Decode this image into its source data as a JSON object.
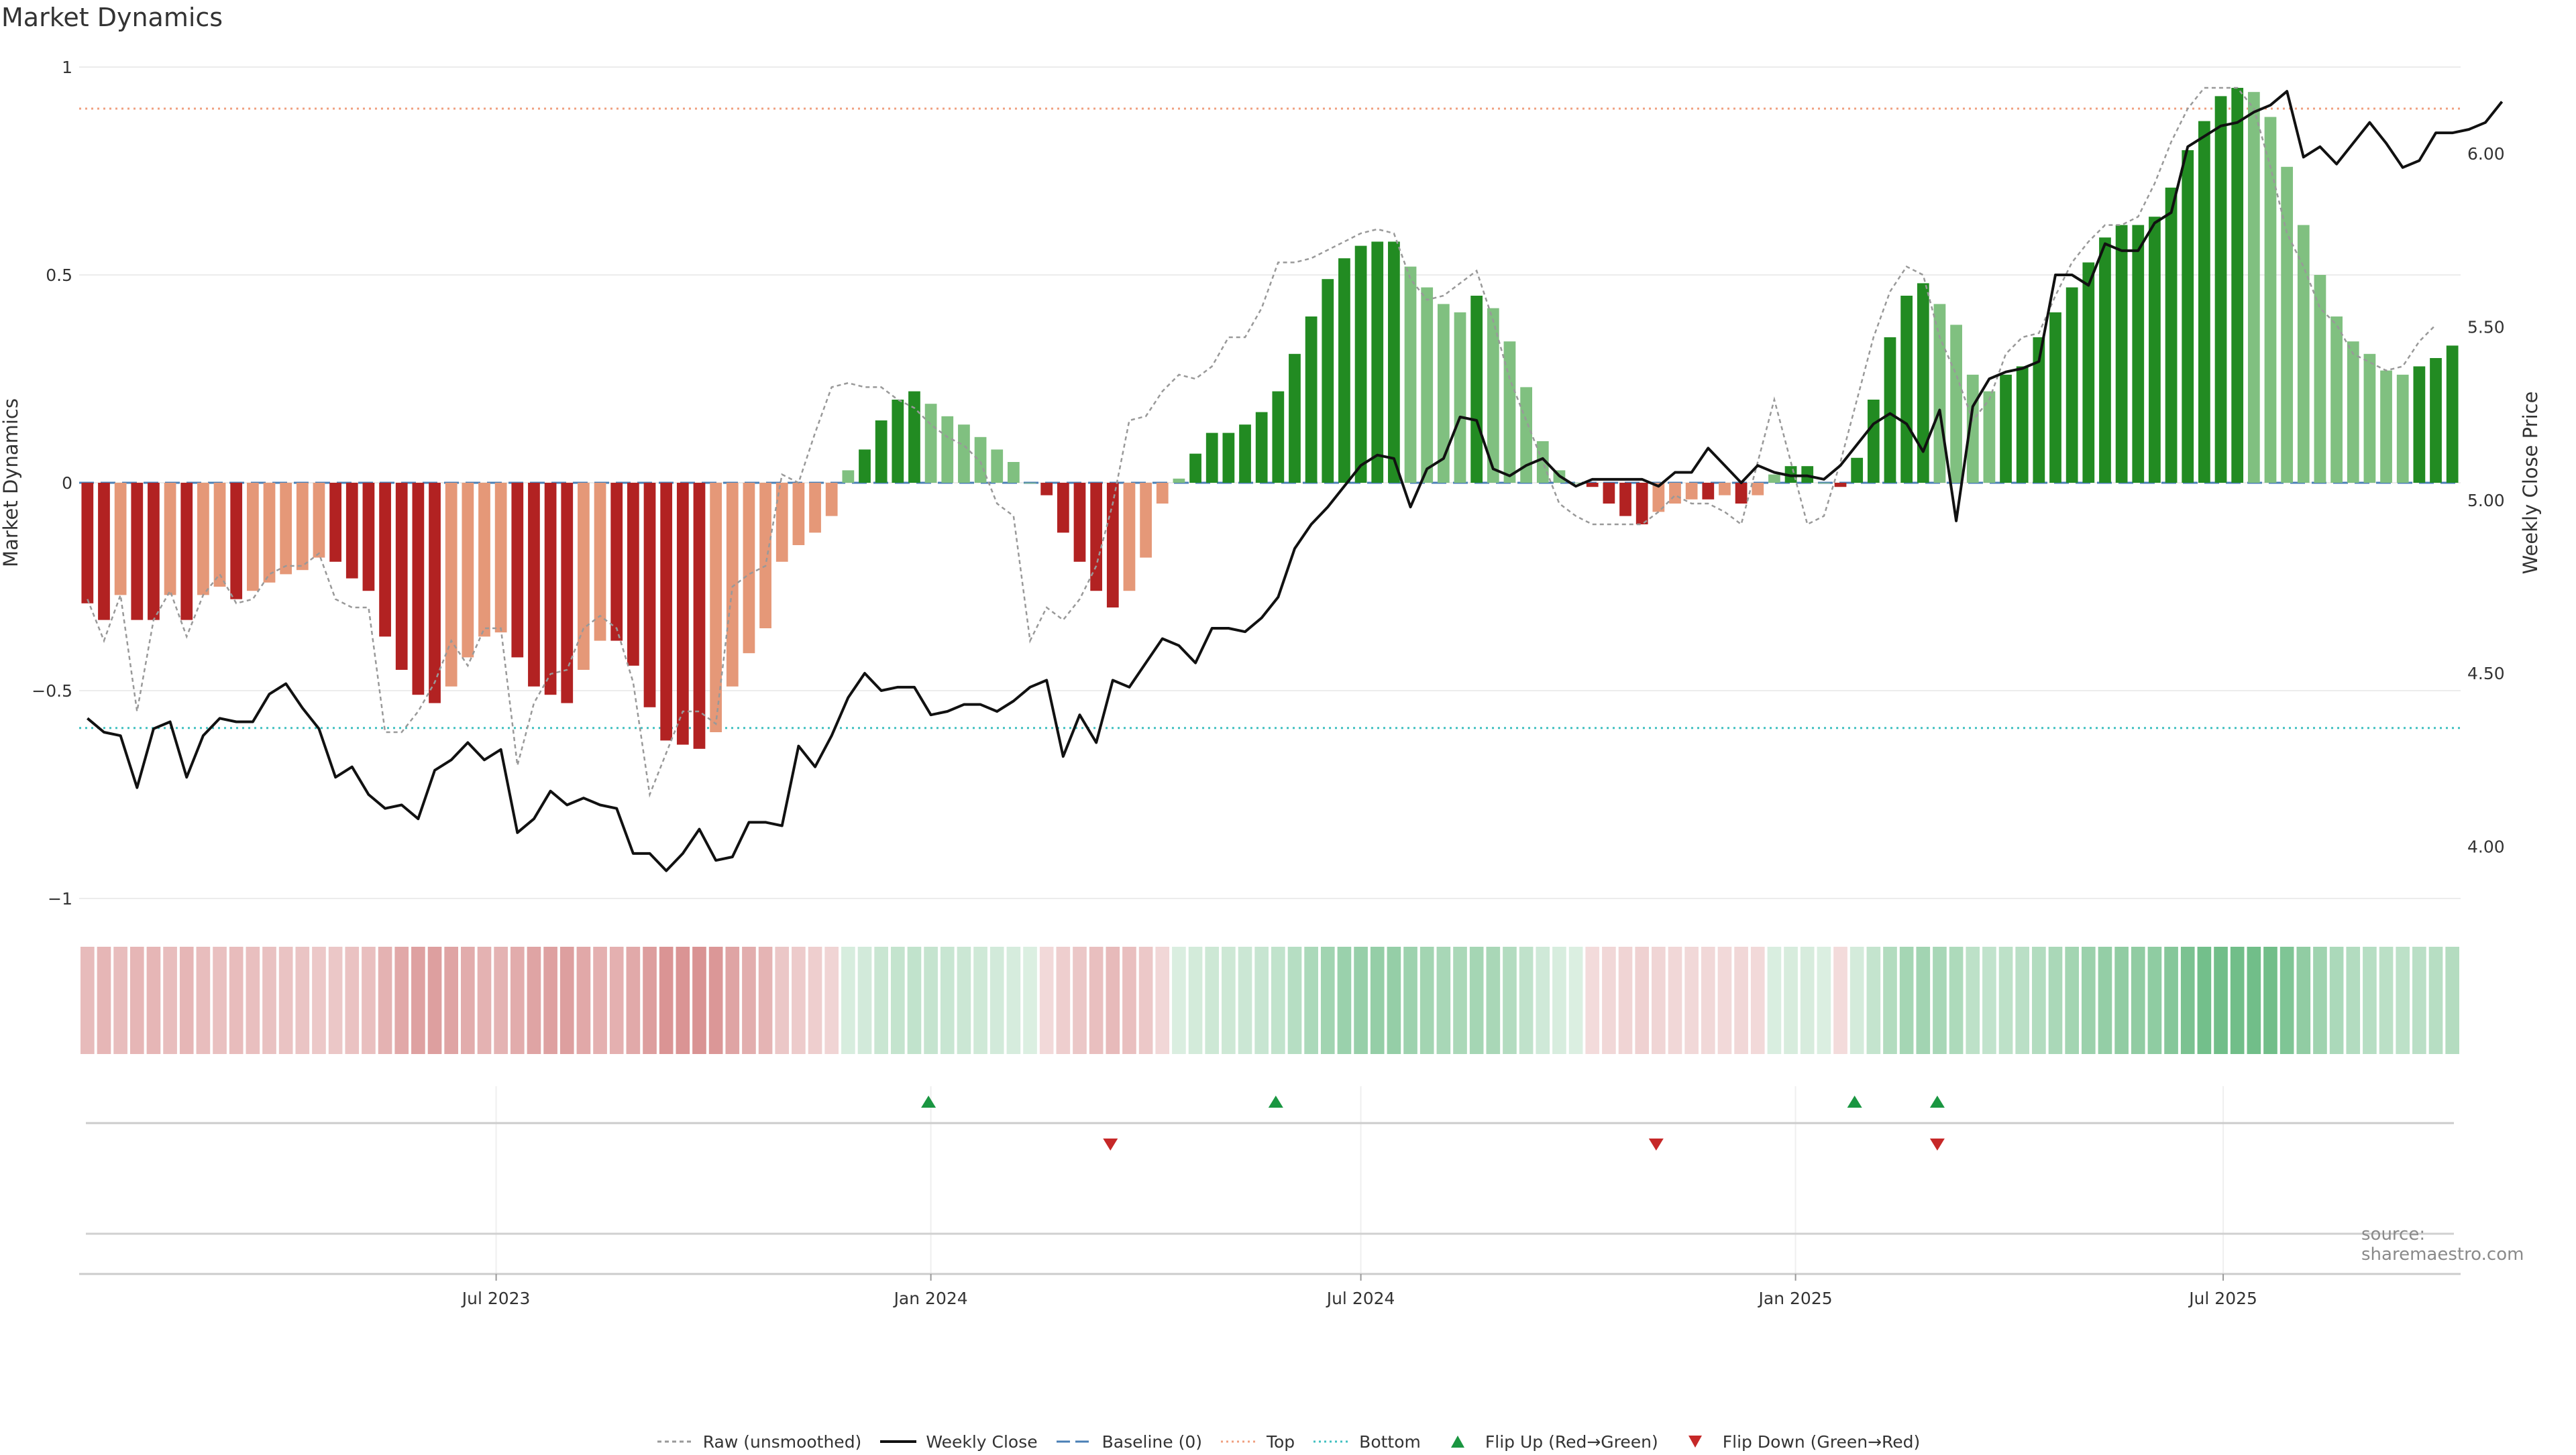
{
  "title": "Market Dynamics",
  "source": "source: sharemaestro.com",
  "chart_data": {
    "type": "bar",
    "x_start": "2023-01-09",
    "week_days": 7,
    "ylabel_left": "Market Dynamics",
    "ylabel_right": "Weekly Close Price",
    "ylim_left": [
      -1,
      1
    ],
    "ylim_right": [
      3.85,
      6.25
    ],
    "yticks_left": [
      -1,
      -0.5,
      0,
      0.5,
      1
    ],
    "yticks_left_labels": [
      "−1",
      "−0.5",
      "0",
      "0.5",
      "1"
    ],
    "yticks_right": [
      4.0,
      4.5,
      5.0,
      5.5,
      6.0
    ],
    "yticks_right_labels": [
      "4.00",
      "4.50",
      "5.00",
      "5.50",
      "6.00"
    ],
    "xticks": [
      {
        "date": "2023-07-01",
        "label": "Jul 2023"
      },
      {
        "date": "2024-01-01",
        "label": "Jan 2024"
      },
      {
        "date": "2024-07-01",
        "label": "Jul 2024"
      },
      {
        "date": "2025-01-01",
        "label": "Jan 2025"
      },
      {
        "date": "2025-07-01",
        "label": "Jul 2025"
      }
    ],
    "top_line": 0.9,
    "bottom_line": -0.59,
    "baseline": 0,
    "grid": true,
    "colors": {
      "strong_red": "#b22222",
      "weak_red": "#e59878",
      "strong_green": "#228b22",
      "weak_green": "#80c080",
      "price_line": "#111111",
      "raw_line": "#999999",
      "baseline": "#4a7fb5",
      "top": "#f0a080",
      "bottom": "#40c0c0",
      "flip_up": "#1a9641",
      "flip_down": "#c62828"
    },
    "dynamics": [
      -0.29,
      -0.33,
      -0.27,
      -0.33,
      -0.33,
      -0.27,
      -0.33,
      -0.27,
      -0.25,
      -0.28,
      -0.26,
      -0.24,
      -0.22,
      -0.21,
      -0.18,
      -0.19,
      -0.23,
      -0.26,
      -0.37,
      -0.45,
      -0.51,
      -0.53,
      -0.49,
      -0.42,
      -0.37,
      -0.36,
      -0.42,
      -0.49,
      -0.51,
      -0.53,
      -0.45,
      -0.38,
      -0.38,
      -0.44,
      -0.54,
      -0.62,
      -0.63,
      -0.64,
      -0.6,
      -0.49,
      -0.41,
      -0.35,
      -0.19,
      -0.15,
      -0.12,
      -0.08,
      0.03,
      0.08,
      0.15,
      0.2,
      0.22,
      0.19,
      0.16,
      0.14,
      0.11,
      0.08,
      0.05,
      0.0,
      -0.03,
      -0.12,
      -0.19,
      -0.26,
      -0.3,
      -0.26,
      -0.18,
      -0.05,
      0.01,
      0.07,
      0.12,
      0.12,
      0.14,
      0.17,
      0.22,
      0.31,
      0.4,
      0.49,
      0.54,
      0.57,
      0.58,
      0.58,
      0.52,
      0.47,
      0.43,
      0.41,
      0.45,
      0.42,
      0.34,
      0.23,
      0.1,
      0.03,
      0.0,
      -0.01,
      -0.05,
      -0.08,
      -0.1,
      -0.07,
      -0.05,
      -0.04,
      -0.04,
      -0.03,
      -0.05,
      -0.03,
      0.02,
      0.04,
      0.04,
      0.0,
      -0.01,
      0.06,
      0.2,
      0.35,
      0.45,
      0.48,
      0.43,
      0.38,
      0.26,
      0.22,
      0.26,
      0.28,
      0.35,
      0.41,
      0.47,
      0.53,
      0.59,
      0.62,
      0.62,
      0.64,
      0.71,
      0.8,
      0.87,
      0.93,
      0.95,
      0.94,
      0.88,
      0.76,
      0.62,
      0.5,
      0.4,
      0.34,
      0.31,
      0.27,
      0.26,
      0.28,
      0.3,
      0.33
    ],
    "raw": [
      -0.28,
      -0.38,
      -0.27,
      -0.55,
      -0.33,
      -0.26,
      -0.37,
      -0.27,
      -0.22,
      -0.29,
      -0.28,
      -0.22,
      -0.2,
      -0.2,
      -0.17,
      -0.28,
      -0.3,
      -0.3,
      -0.6,
      -0.6,
      -0.55,
      -0.48,
      -0.38,
      -0.44,
      -0.35,
      -0.35,
      -0.68,
      -0.53,
      -0.46,
      -0.45,
      -0.35,
      -0.32,
      -0.35,
      -0.48,
      -0.75,
      -0.65,
      -0.55,
      -0.55,
      -0.58,
      -0.25,
      -0.22,
      -0.2,
      0.02,
      0.0,
      0.12,
      0.23,
      0.24,
      0.23,
      0.23,
      0.2,
      0.18,
      0.14,
      0.11,
      0.09,
      0.05,
      -0.05,
      -0.08,
      -0.38,
      -0.3,
      -0.33,
      -0.28,
      -0.2,
      -0.05,
      0.15,
      0.16,
      0.22,
      0.26,
      0.25,
      0.28,
      0.35,
      0.35,
      0.42,
      0.53,
      0.53,
      0.54,
      0.56,
      0.58,
      0.6,
      0.61,
      0.6,
      0.49,
      0.44,
      0.45,
      0.48,
      0.51,
      0.39,
      0.25,
      0.15,
      0.05,
      -0.05,
      -0.08,
      -0.1,
      -0.1,
      -0.1,
      -0.1,
      -0.07,
      -0.03,
      -0.05,
      -0.05,
      -0.07,
      -0.1,
      0.05,
      0.2,
      0.05,
      -0.1,
      -0.08,
      0.05,
      0.2,
      0.35,
      0.46,
      0.52,
      0.5,
      0.35,
      0.26,
      0.15,
      0.2,
      0.31,
      0.35,
      0.36,
      0.45,
      0.53,
      0.58,
      0.62,
      0.62,
      0.64,
      0.72,
      0.82,
      0.9,
      0.95,
      0.95,
      0.95,
      0.9,
      0.76,
      0.6,
      0.52,
      0.42,
      0.38,
      0.31,
      0.29,
      0.27,
      0.28,
      0.34,
      0.38
    ],
    "price": [
      4.37,
      4.33,
      4.32,
      4.17,
      4.34,
      4.36,
      4.2,
      4.32,
      4.37,
      4.36,
      4.36,
      4.44,
      4.47,
      4.4,
      4.34,
      4.2,
      4.23,
      4.15,
      4.11,
      4.12,
      4.08,
      4.22,
      4.25,
      4.3,
      4.25,
      4.28,
      4.04,
      4.08,
      4.16,
      4.12,
      4.14,
      4.12,
      4.11,
      3.98,
      3.98,
      3.93,
      3.98,
      4.05,
      3.96,
      3.97,
      4.07,
      4.07,
      4.06,
      4.29,
      4.23,
      4.32,
      4.43,
      4.5,
      4.45,
      4.46,
      4.46,
      4.38,
      4.39,
      4.41,
      4.41,
      4.39,
      4.42,
      4.46,
      4.48,
      4.26,
      4.38,
      4.3,
      4.48,
      4.46,
      4.53,
      4.6,
      4.58,
      4.53,
      4.63,
      4.63,
      4.62,
      4.66,
      4.72,
      4.86,
      4.93,
      4.98,
      5.04,
      5.1,
      5.13,
      5.12,
      4.98,
      5.09,
      5.12,
      5.24,
      5.23,
      5.09,
      5.07,
      5.1,
      5.12,
      5.07,
      5.04,
      5.06,
      5.06,
      5.06,
      5.06,
      5.04,
      5.08,
      5.08,
      5.15,
      5.1,
      5.05,
      5.1,
      5.08,
      5.07,
      5.07,
      5.06,
      5.1,
      5.16,
      5.22,
      5.25,
      5.22,
      5.14,
      5.26,
      4.94,
      5.27,
      5.35,
      5.37,
      5.38,
      5.4,
      5.65,
      5.65,
      5.62,
      5.74,
      5.72,
      5.72,
      5.8,
      5.83,
      6.02,
      6.05,
      6.08,
      6.09,
      6.12,
      6.14,
      6.18,
      5.99,
      6.02,
      5.97,
      6.03,
      6.09,
      6.03,
      5.96,
      5.98,
      6.06,
      6.06,
      6.07,
      6.09,
      6.15
    ],
    "flip_up": [
      "2023-12-31",
      "2024-05-26",
      "2025-01-26",
      "2025-03-02"
    ],
    "flip_down": [
      "2024-03-17",
      "2024-11-03",
      "2025-03-02"
    ]
  },
  "legend": [
    {
      "label": "Raw (unsmoothed)",
      "kind": "line-dashed",
      "color": "#999999"
    },
    {
      "label": "Weekly Close",
      "kind": "line",
      "color": "#111111"
    },
    {
      "label": "Baseline (0)",
      "kind": "line-longdash",
      "color": "#4a7fb5"
    },
    {
      "label": "Top",
      "kind": "line-dotted",
      "color": "#f0a080"
    },
    {
      "label": "Bottom",
      "kind": "line-dotted",
      "color": "#40c0c0"
    },
    {
      "label": "Flip Up (Red→Green)",
      "kind": "triangle-up",
      "color": "#1a9641"
    },
    {
      "label": "Flip Down (Green→Red)",
      "kind": "triangle-down",
      "color": "#c62828"
    }
  ]
}
